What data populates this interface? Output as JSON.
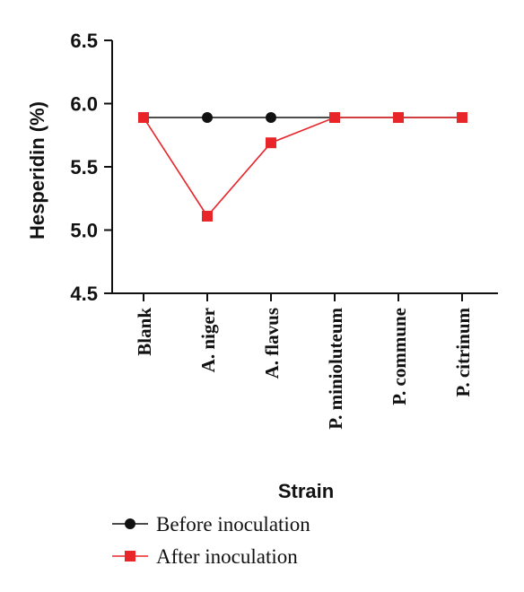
{
  "chart_data": {
    "type": "line",
    "title": "",
    "xlabel": "Strain",
    "ylabel": "Hesperidin (%)",
    "ylim": [
      4.5,
      6.5
    ],
    "yticks": [
      "4.5",
      "5.0",
      "5.5",
      "6.0",
      "6.5"
    ],
    "categories": [
      "Blank",
      "A. niger",
      "A. flavus",
      "P. minioluteum",
      "P. commune",
      "P. citrinum"
    ],
    "series": [
      {
        "name": "Before inoculation",
        "marker": "circle",
        "color": "#111111",
        "values": [
          5.89,
          5.89,
          5.89,
          5.89,
          5.89,
          5.89
        ]
      },
      {
        "name": "After inoculation",
        "marker": "square",
        "color": "#e8262a",
        "values": [
          5.89,
          5.11,
          5.69,
          5.89,
          5.89,
          5.89
        ]
      }
    ],
    "grid": false,
    "legend_position": "bottom"
  }
}
